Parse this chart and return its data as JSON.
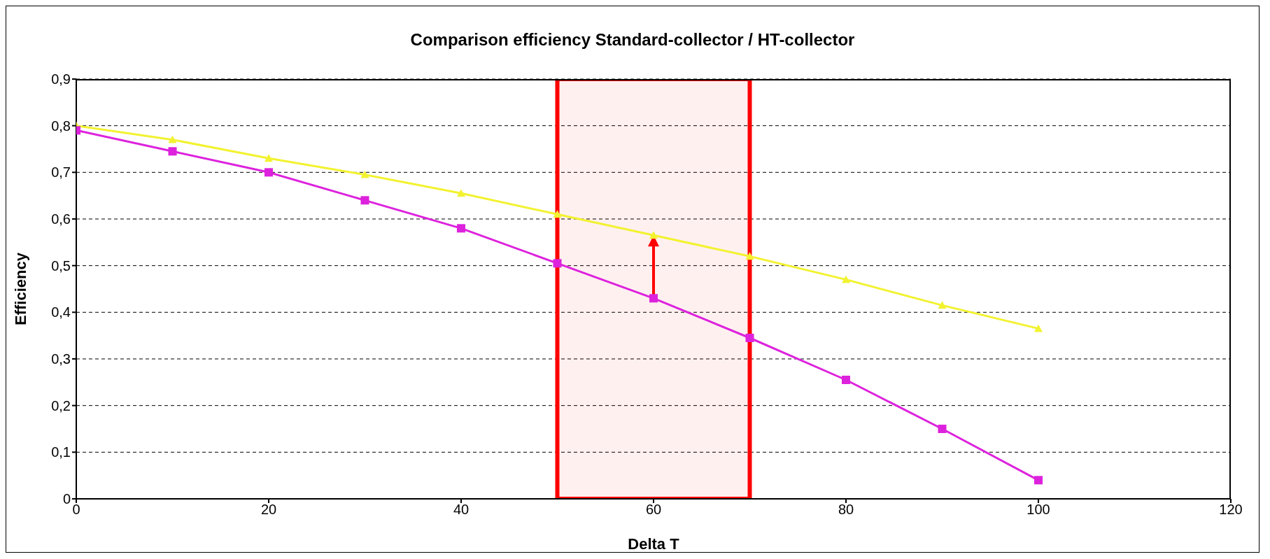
{
  "chart_data": {
    "type": "line",
    "title": "Comparison efficiency Standard-collector / HT-collector",
    "xlabel": "Delta T",
    "ylabel": "Efficiency",
    "x": [
      0,
      10,
      20,
      30,
      40,
      50,
      60,
      70,
      80,
      90,
      100
    ],
    "series": [
      {
        "color": "#f2f230",
        "marker": "triangle",
        "values": [
          0.8,
          0.77,
          0.73,
          0.695,
          0.655,
          0.61,
          0.565,
          0.52,
          0.47,
          0.415,
          0.365
        ]
      },
      {
        "color": "#dd22dd",
        "marker": "square",
        "values": [
          0.79,
          0.745,
          0.7,
          0.64,
          0.58,
          0.505,
          0.43,
          0.345,
          0.255,
          0.15,
          0.04
        ]
      }
    ],
    "xlim": [
      0,
      120
    ],
    "xticks": [
      0,
      20,
      40,
      60,
      80,
      100,
      120
    ],
    "ylim": [
      0,
      0.9
    ],
    "yticks": [
      {
        "value": 0,
        "label": "0"
      },
      {
        "value": 0.1,
        "label": "0,1"
      },
      {
        "value": 0.2,
        "label": "0,2"
      },
      {
        "value": 0.3,
        "label": "0,3"
      },
      {
        "value": 0.4,
        "label": "0,4"
      },
      {
        "value": 0.5,
        "label": "0,5"
      },
      {
        "value": 0.6,
        "label": "0,6"
      },
      {
        "value": 0.7,
        "label": "0,7"
      },
      {
        "value": 0.8,
        "label": "0,8"
      },
      {
        "value": 0.9,
        "label": "0,9"
      }
    ],
    "grid": "y",
    "line_style": "solid",
    "bands": [
      {
        "axis": "x",
        "from": 50,
        "to": 70,
        "color": "#ff0000"
      }
    ]
  }
}
